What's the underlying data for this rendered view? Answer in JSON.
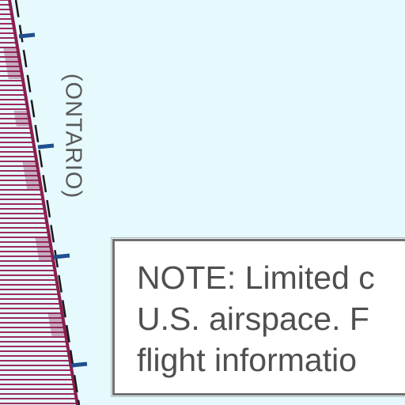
{
  "map": {
    "region_label": "(ONTARIO)",
    "note_lines": [
      "NOTE: Limited c",
      "U.S. airspace. F",
      "flight informatio"
    ],
    "colors": {
      "water": "#e6f9fc",
      "boundary_line": "#8a1f4f",
      "boundary_hatch": "#9b2a5c",
      "tick_marks": "#1f4f8f",
      "label_text": "#5a5a5a",
      "note_border": "#707070"
    }
  }
}
